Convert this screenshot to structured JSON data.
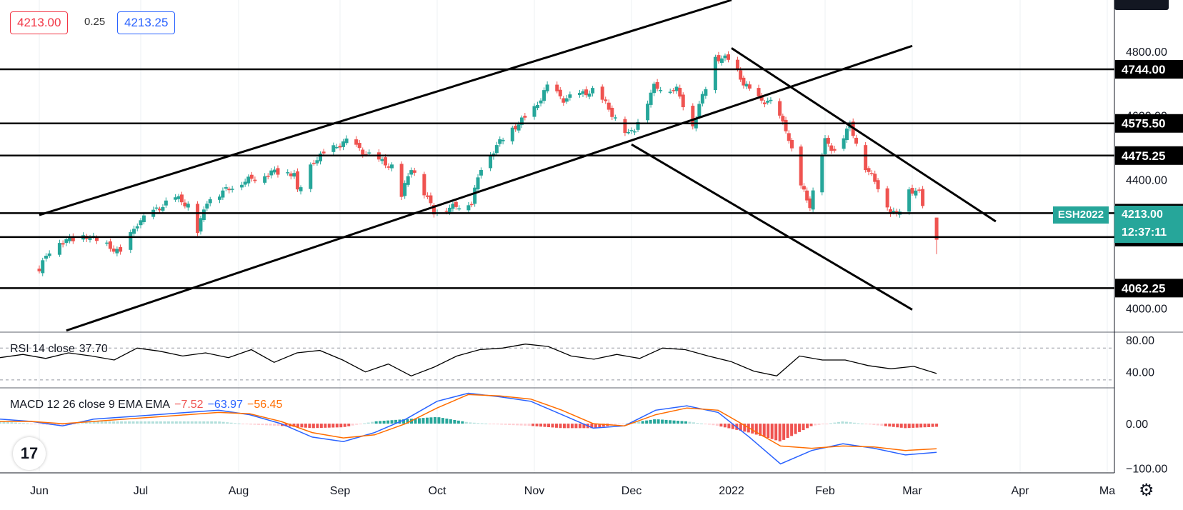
{
  "header": {
    "bid": "4213.00",
    "spread": "0.25",
    "ask": "4213.25"
  },
  "symbol": "ESH2022",
  "last_price": "4213.00",
  "countdown": "12:37:11",
  "colors": {
    "up": "#26a69a",
    "down": "#ef5350",
    "bid": "#f23645",
    "ask": "#2962ff",
    "macd_line": "#2962ff",
    "signal_line": "#ff6d00"
  },
  "icons": {
    "logo": "tradingview-logo-icon",
    "settings": "gear-icon"
  },
  "rsi": {
    "label": "RSI 14 close",
    "value": "37.70"
  },
  "macd": {
    "label": "MACD 12 26 close 9 EMA EMA",
    "hist": "−7.52",
    "macd": "−63.97",
    "signal": "−56.45"
  },
  "chart_data": [
    {
      "type": "candlestick",
      "x_labels": [
        "Jun",
        "Jul",
        "Aug",
        "Sep",
        "Oct",
        "Nov",
        "Dec",
        "2022",
        "Feb",
        "Mar",
        "Apr",
        "Ma"
      ],
      "y_ticks": [
        "4800.00",
        "4600.00",
        "4400.00",
        "4000.00"
      ],
      "ylim": [
        3925,
        4960
      ],
      "horizontal_levels": [
        "4744.00",
        "4575.50",
        "4475.25",
        "4295.75",
        "4221.25",
        "4062.25"
      ],
      "trendlines": [
        {
          "from": [
            "2021-06-01",
            4290
          ],
          "to": [
            "2022-01-01",
            4960
          ]
        },
        {
          "from": [
            "2021-06-09",
            3930
          ],
          "to": [
            "2022-03-01",
            4817
          ]
        },
        {
          "from": [
            "2022-01-01",
            4810
          ],
          "to": [
            "2022-03-25",
            4270
          ]
        },
        {
          "from": [
            "2021-12-01",
            4510
          ],
          "to": [
            "2022-03-01",
            3995
          ]
        }
      ],
      "close_path": [
        [
          "2021-06-01",
          4120
        ],
        [
          "2021-06-05",
          4200
        ],
        [
          "2021-06-15",
          4225
        ],
        [
          "2021-06-22",
          4190
        ],
        [
          "2021-06-25",
          4170
        ],
        [
          "2021-06-30",
          4265
        ],
        [
          "2021-07-05",
          4300
        ],
        [
          "2021-07-12",
          4345
        ],
        [
          "2021-07-16",
          4320
        ],
        [
          "2021-07-19",
          4240
        ],
        [
          "2021-07-22",
          4335
        ],
        [
          "2021-08-01",
          4390
        ],
        [
          "2021-08-12",
          4425
        ],
        [
          "2021-08-18",
          4420
        ],
        [
          "2021-08-19",
          4360
        ],
        [
          "2021-08-24",
          4460
        ],
        [
          "2021-09-01",
          4510
        ],
        [
          "2021-09-03",
          4520
        ],
        [
          "2021-09-10",
          4475
        ],
        [
          "2021-09-17",
          4440
        ],
        [
          "2021-09-20",
          4350
        ],
        [
          "2021-09-23",
          4440
        ],
        [
          "2021-09-30",
          4300
        ],
        [
          "2021-10-04",
          4310
        ],
        [
          "2021-10-12",
          4330
        ],
        [
          "2021-10-15",
          4440
        ],
        [
          "2021-10-22",
          4530
        ],
        [
          "2021-11-01",
          4620
        ],
        [
          "2021-11-05",
          4690
        ],
        [
          "2021-11-10",
          4650
        ],
        [
          "2021-11-20",
          4680
        ],
        [
          "2021-11-26",
          4590
        ],
        [
          "2021-11-30",
          4540
        ],
        [
          "2021-12-02",
          4560
        ],
        [
          "2021-12-08",
          4690
        ],
        [
          "2021-12-15",
          4680
        ],
        [
          "2021-12-20",
          4570
        ],
        [
          "2021-12-27",
          4780
        ],
        [
          "2022-01-01",
          4775
        ],
        [
          "2022-01-05",
          4700
        ],
        [
          "2022-01-10",
          4650
        ],
        [
          "2022-01-14",
          4640
        ],
        [
          "2022-01-19",
          4560
        ],
        [
          "2022-01-24",
          4380
        ],
        [
          "2022-01-27",
          4320
        ],
        [
          "2022-02-01",
          4520
        ],
        [
          "2022-02-04",
          4490
        ],
        [
          "2022-02-09",
          4570
        ],
        [
          "2022-02-14",
          4440
        ],
        [
          "2022-02-18",
          4380
        ],
        [
          "2022-02-22",
          4300
        ],
        [
          "2022-02-24",
          4290
        ],
        [
          "2022-02-28",
          4370
        ],
        [
          "2022-03-03",
          4360
        ],
        [
          "2022-03-07",
          4213
        ]
      ]
    },
    {
      "type": "line",
      "title": "RSI 14 close",
      "y_ticks": [
        "80.00",
        "40.00"
      ],
      "ylim": [
        20,
        90
      ],
      "series": [
        {
          "values": [
            58,
            62,
            57,
            64,
            60,
            55,
            70,
            66,
            60,
            64,
            58,
            68,
            52,
            64,
            67,
            55,
            40,
            50,
            35,
            46,
            60,
            68,
            70,
            75,
            72,
            60,
            56,
            62,
            57,
            70,
            68,
            60,
            53,
            41,
            35,
            60,
            55,
            55,
            48,
            44,
            47,
            38
          ]
        }
      ]
    },
    {
      "type": "line_bar",
      "title": "MACD 12 26 close 9 EMA EMA",
      "y_ticks": [
        "0.00",
        "−100.00"
      ],
      "ylim": [
        -110,
        80
      ],
      "macd": [
        10,
        5,
        -5,
        10,
        15,
        20,
        25,
        30,
        20,
        0,
        -30,
        -40,
        -20,
        10,
        50,
        68,
        60,
        50,
        20,
        -10,
        -5,
        30,
        40,
        25,
        -30,
        -90,
        -60,
        -45,
        -55,
        -70,
        -64
      ],
      "signal": [
        5,
        5,
        0,
        5,
        10,
        15,
        20,
        25,
        22,
        5,
        -20,
        -32,
        -25,
        0,
        35,
        65,
        62,
        55,
        30,
        0,
        -5,
        20,
        35,
        30,
        -10,
        -50,
        -55,
        -50,
        -52,
        -60,
        -56
      ],
      "hist": [
        5,
        0,
        -5,
        5,
        5,
        5,
        5,
        5,
        -2,
        -5,
        -10,
        -8,
        5,
        10,
        15,
        3,
        -2,
        -5,
        -10,
        -10,
        0,
        10,
        5,
        -5,
        -20,
        -40,
        -5,
        5,
        -3,
        -10,
        -7
      ]
    }
  ]
}
